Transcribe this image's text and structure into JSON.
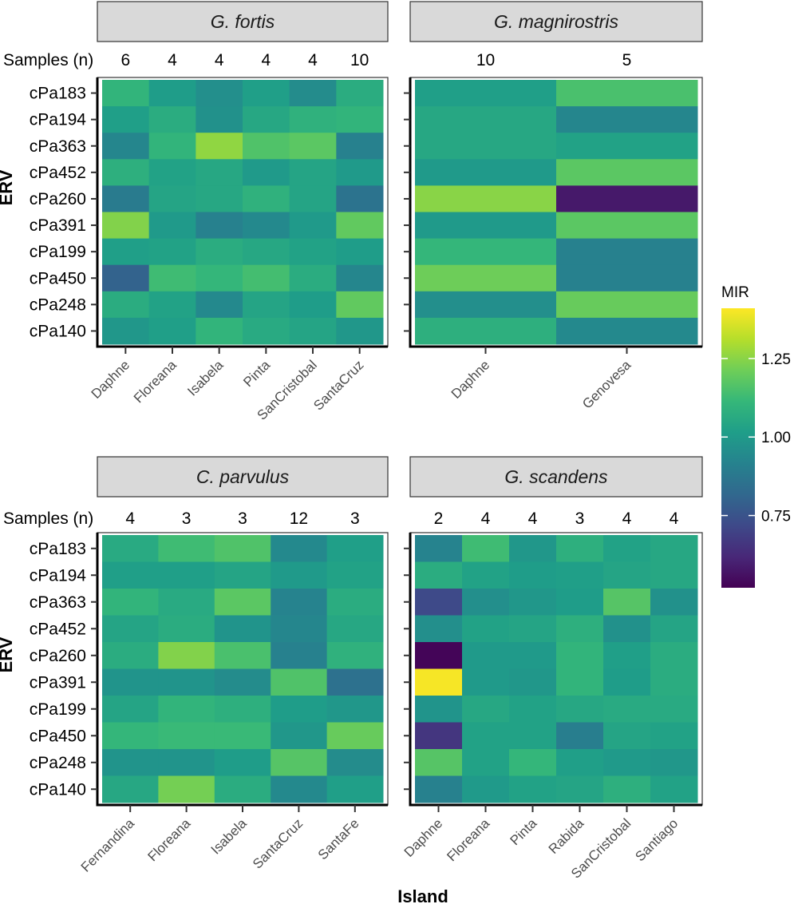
{
  "chart_data": {
    "type": "heatmap",
    "xlabel": "Island",
    "ylabel": "ERV",
    "samples_label": "Samples (n)",
    "erv": [
      "cPa183",
      "cPa194",
      "cPa363",
      "cPa452",
      "cPa260",
      "cPa391",
      "cPa199",
      "cPa450",
      "cPa248",
      "cPa140"
    ],
    "legend": {
      "title": "MIR",
      "range": [
        0.52,
        1.41
      ],
      "ticks": [
        0.75,
        1.0,
        1.25
      ],
      "tick_labels": [
        "0.75",
        "1.00",
        "1.25"
      ]
    },
    "panels": [
      {
        "species": "G. fortis",
        "islands": [
          "Daphne",
          "Floreana",
          "Isabela",
          "Pinta",
          "SanCristobal",
          "SantaCruz"
        ],
        "samples": [
          "6",
          "4",
          "4",
          "4",
          "4",
          "10"
        ],
        "values": [
          [
            1.1,
            1.01,
            0.96,
            1.02,
            0.95,
            1.07
          ],
          [
            1.02,
            1.07,
            0.97,
            1.05,
            1.09,
            1.1
          ],
          [
            0.93,
            1.1,
            1.26,
            1.16,
            1.18,
            0.91
          ],
          [
            1.08,
            1.03,
            1.05,
            1.0,
            1.04,
            1.0
          ],
          [
            0.89,
            1.04,
            1.05,
            1.09,
            1.04,
            0.86
          ],
          [
            1.24,
            1.0,
            0.91,
            0.94,
            1.0,
            1.19
          ],
          [
            1.02,
            1.03,
            1.07,
            1.05,
            1.03,
            1.01
          ],
          [
            0.8,
            1.13,
            1.11,
            1.14,
            1.07,
            0.93
          ],
          [
            1.07,
            1.03,
            0.94,
            1.04,
            1.01,
            1.19
          ],
          [
            0.99,
            1.02,
            1.1,
            1.06,
            1.04,
            0.99
          ]
        ]
      },
      {
        "species": "G. magnirostris",
        "islands": [
          "Daphne",
          "Genovesa"
        ],
        "samples": [
          "10",
          "5"
        ],
        "values": [
          [
            1.02,
            1.15
          ],
          [
            1.05,
            0.93
          ],
          [
            1.05,
            1.03
          ],
          [
            1.0,
            1.18
          ],
          [
            1.25,
            0.58
          ],
          [
            1.0,
            1.18
          ],
          [
            1.11,
            0.91
          ],
          [
            1.21,
            0.91
          ],
          [
            0.96,
            1.2
          ],
          [
            1.08,
            0.94
          ]
        ]
      },
      {
        "species": "C. parvulus",
        "islands": [
          "Fernandina",
          "Floreana",
          "Isabela",
          "SantaCruz",
          "SantaFe"
        ],
        "samples": [
          "4",
          "3",
          "3",
          "12",
          "3"
        ],
        "values": [
          [
            1.06,
            1.13,
            1.16,
            0.94,
            1.02
          ],
          [
            1.02,
            1.02,
            1.04,
            1.0,
            1.03
          ],
          [
            1.1,
            1.06,
            1.18,
            0.92,
            1.07
          ],
          [
            1.04,
            1.07,
            0.98,
            0.93,
            1.05
          ],
          [
            1.07,
            1.24,
            1.15,
            0.91,
            1.09
          ],
          [
            0.98,
            0.98,
            0.95,
            1.16,
            0.85
          ],
          [
            1.04,
            1.1,
            1.08,
            1.01,
            0.99
          ],
          [
            1.11,
            1.12,
            1.12,
            0.99,
            1.2
          ],
          [
            0.98,
            0.98,
            1.01,
            1.17,
            0.95
          ],
          [
            1.05,
            1.22,
            1.07,
            0.94,
            1.02
          ]
        ]
      },
      {
        "species": "G. scandens",
        "islands": [
          "Daphne",
          "Floreana",
          "Pinta",
          "Rabida",
          "SanCristobal",
          "Santiago"
        ],
        "samples": [
          "2",
          "4",
          "4",
          "3",
          "4",
          "4"
        ],
        "values": [
          [
            0.92,
            1.13,
            0.99,
            1.08,
            1.03,
            1.05
          ],
          [
            1.07,
            1.03,
            1.01,
            1.02,
            1.04,
            1.05
          ],
          [
            0.72,
            0.96,
            0.99,
            1.01,
            1.17,
            0.97
          ],
          [
            0.96,
            1.03,
            1.04,
            1.08,
            0.97,
            1.04
          ],
          [
            0.53,
            1.0,
            1.0,
            1.1,
            1.02,
            1.07
          ],
          [
            1.4,
            1.0,
            0.99,
            1.1,
            1.01,
            1.07
          ],
          [
            0.98,
            1.05,
            1.03,
            1.05,
            1.06,
            1.06
          ],
          [
            0.66,
            1.03,
            1.03,
            0.9,
            1.04,
            1.03
          ],
          [
            1.17,
            1.03,
            1.11,
            1.02,
            1.0,
            0.99
          ],
          [
            0.91,
            1.0,
            1.03,
            1.04,
            1.08,
            1.03
          ]
        ]
      }
    ]
  }
}
